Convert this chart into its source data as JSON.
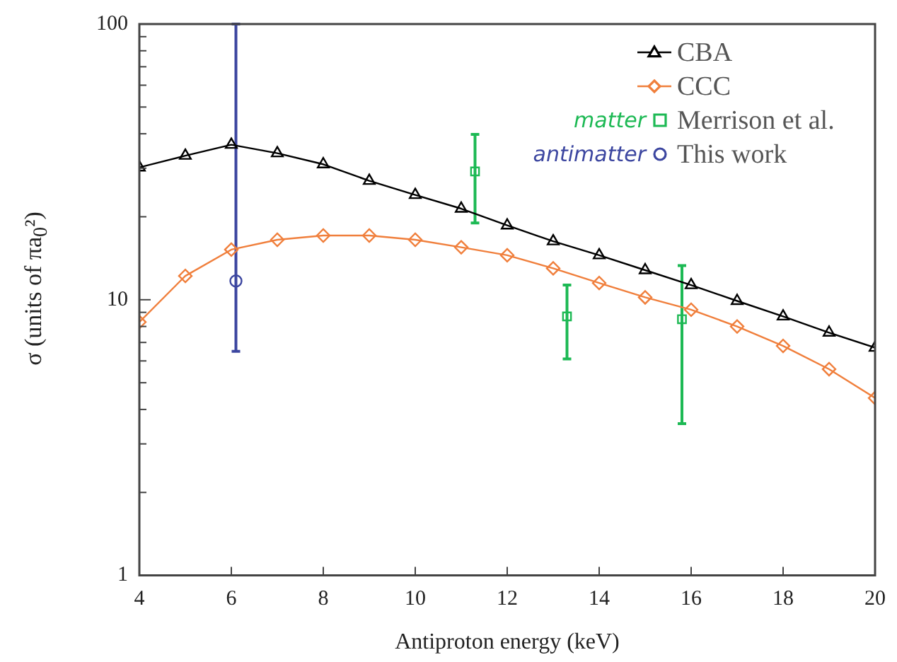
{
  "chart_data": {
    "type": "line",
    "xlabel": "Antiproton energy (keV)",
    "ylabel": "σ (units of πa$_{0}$²)",
    "log": "y",
    "xlim": [
      4,
      20
    ],
    "xticks": [
      4,
      6,
      8,
      10,
      12,
      14,
      16,
      18,
      20
    ],
    "ylim": [
      1,
      100
    ],
    "yticks": [
      1,
      {
        "value": 2,
        "label": null
      },
      {
        "value": 3,
        "label": null
      },
      {
        "value": 4,
        "label": null
      },
      {
        "value": 5,
        "label": null
      },
      {
        "value": 6,
        "label": null
      },
      {
        "value": 7,
        "label": null
      },
      {
        "value": 8,
        "label": null
      },
      {
        "value": 9,
        "label": null
      },
      10,
      {
        "value": 20,
        "label": null
      },
      {
        "value": 30,
        "label": null
      },
      {
        "value": 40,
        "label": null
      },
      {
        "value": 50,
        "label": null
      },
      {
        "value": 60,
        "label": null
      },
      {
        "value": 70,
        "label": null
      },
      {
        "value": 80,
        "label": null
      },
      {
        "value": 90,
        "label": null
      },
      100
    ],
    "grid": false,
    "legend": "top right",
    "annotations": [
      "matter",
      "antimatter"
    ],
    "series": [
      {
        "name": "CBA",
        "color": "#000000",
        "marker": "triangle",
        "x": [
          4,
          5,
          6,
          7,
          8,
          9,
          10,
          11,
          12,
          13,
          14,
          15,
          16,
          17,
          18,
          19,
          20
        ],
        "values": [
          30.2,
          33.3,
          36.5,
          34,
          31,
          27,
          24,
          21.4,
          18.6,
          16.3,
          14.5,
          12.8,
          11.3,
          9.9,
          8.7,
          7.6,
          6.7
        ]
      },
      {
        "name": "CCC",
        "color": "#f07f3c",
        "marker": "diamond",
        "x": [
          4,
          5,
          6,
          7,
          8,
          9,
          10,
          11,
          12,
          13,
          14,
          15,
          16,
          17,
          18,
          19,
          20
        ],
        "values": [
          8.3,
          12.2,
          15.2,
          16.5,
          17.1,
          17.1,
          16.5,
          15.5,
          14.5,
          13,
          11.5,
          10.2,
          9.2,
          8,
          6.8,
          5.6,
          4.4
        ]
      },
      {
        "name": "Merrison et al.",
        "type": "scatter",
        "color": "#1db954",
        "marker": "square",
        "x": [
          11.3,
          13.3,
          15.8
        ],
        "values": [
          29.2,
          8.7,
          8.5
        ],
        "errors": [
          [
            19,
            39.8
          ],
          [
            6.1,
            11.3
          ],
          [
            3.55,
            13.3
          ]
        ]
      },
      {
        "name": "This work",
        "type": "scatter",
        "color": "#3c46a0",
        "marker": "circle",
        "x": [
          6.1
        ],
        "values": [
          11.7
        ],
        "errors": [
          [
            6.5,
            100
          ]
        ]
      }
    ]
  }
}
